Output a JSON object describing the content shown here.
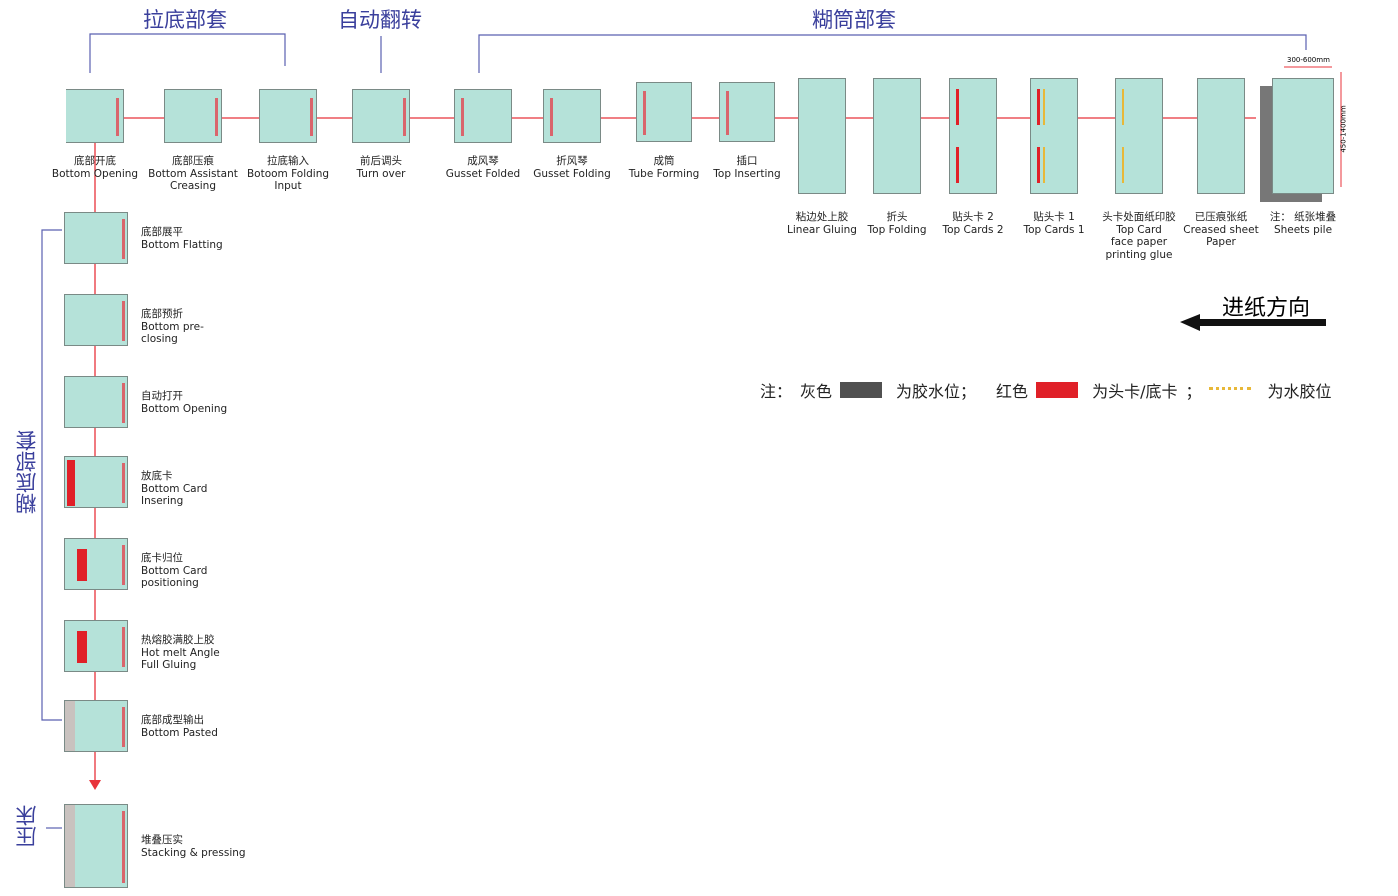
{
  "sections": {
    "pull_bottom": "拉底部套",
    "auto_flip": "自动翻转",
    "tube_glue": "糊筒部套",
    "bottom_glue": "糊底部套",
    "press": "压床"
  },
  "top_steps": [
    {
      "cn": "底部开底",
      "en": [
        "Bottom Opening"
      ]
    },
    {
      "cn": "底部压痕",
      "en": [
        "Bottom Assistant",
        "Creasing"
      ]
    },
    {
      "cn": "拉底输入",
      "en": [
        "Botoom Folding",
        "Input"
      ]
    },
    {
      "cn": "前后调头",
      "en": [
        "Turn over"
      ]
    },
    {
      "cn": "成风琴",
      "en": [
        "Gusset Folded"
      ]
    },
    {
      "cn": "折风琴",
      "en": [
        "Gusset Folding"
      ]
    },
    {
      "cn": "成筒",
      "en": [
        "Tube Forming"
      ]
    },
    {
      "cn": "插口",
      "en": [
        "Top Inserting"
      ]
    },
    {
      "cn": "粘边处上胶",
      "en": [
        "Linear Gluing"
      ]
    },
    {
      "cn": "折头",
      "en": [
        "Top Folding"
      ]
    },
    {
      "cn": "贴头卡 2",
      "en": [
        "Top Cards 2"
      ]
    },
    {
      "cn": "贴头卡 1",
      "en": [
        "Top Cards 1"
      ]
    },
    {
      "cn": "头卡处面纸印胶",
      "en": [
        "Top Card",
        "face paper",
        "printing glue"
      ]
    },
    {
      "cn": "已压痕张纸",
      "en": [
        "Creased sheet",
        "Paper"
      ]
    },
    {
      "cn": "注： 纸张堆叠",
      "en": [
        "Sheets pile"
      ]
    }
  ],
  "side_steps": [
    {
      "cn": "底部展平",
      "en": [
        "Bottom Flatting"
      ]
    },
    {
      "cn": "底部预折",
      "en": [
        "Bottom pre-",
        "closing"
      ]
    },
    {
      "cn": "自动打开",
      "en": [
        "Bottom Opening"
      ]
    },
    {
      "cn": "放底卡",
      "en": [
        "Bottom Card",
        "Insering"
      ]
    },
    {
      "cn": "底卡归位",
      "en": [
        "Bottom Card",
        "positioning"
      ]
    },
    {
      "cn": "热熔胶满胶上胶",
      "en": [
        "Hot melt Angle",
        "Full Gluing"
      ]
    },
    {
      "cn": "底部成型输出",
      "en": [
        "Bottom Pasted"
      ]
    },
    {
      "cn": "堆叠压实",
      "en": [
        "Stacking & pressing"
      ]
    }
  ],
  "dimensions": {
    "width": "300-600mm",
    "height": "450-1400mm"
  },
  "direction": "进纸方向",
  "legend": {
    "note": "注：",
    "gray": "灰色",
    "gray_means": "为胶水位；",
    "red": "红色",
    "red_means": "为头卡/底卡",
    "semi": "；",
    "yellow_means": "为水胶位"
  },
  "colors": {
    "panel": "#b5e2d9",
    "line": "#e8333b",
    "section": "#3a3f9c",
    "glue_gray": "#505050",
    "card_red": "#e02028",
    "water_glue": "#e8b838"
  }
}
